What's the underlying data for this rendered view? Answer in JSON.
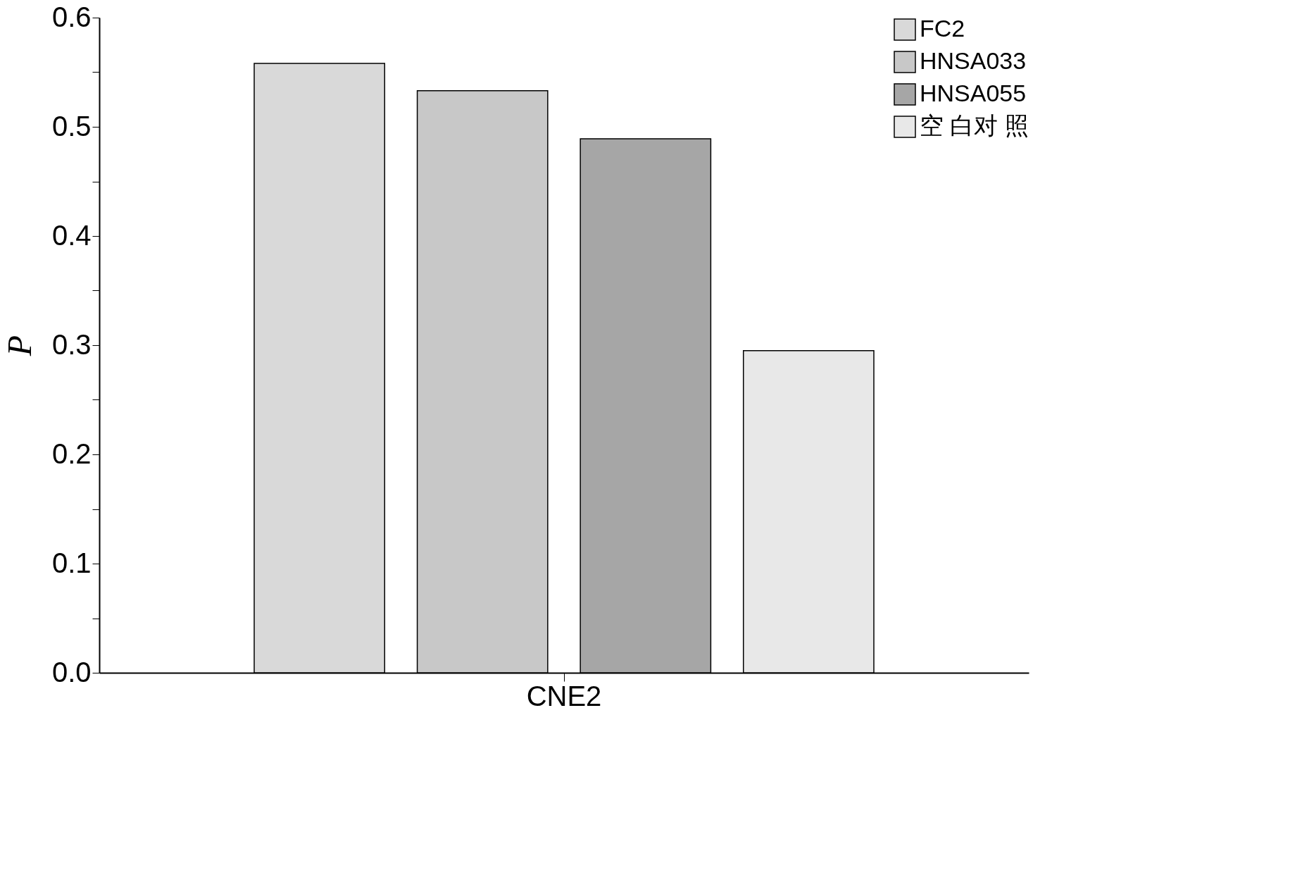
{
  "chart_data": {
    "type": "bar",
    "ylabel": "P",
    "categories": [
      "CNE2"
    ],
    "series": [
      {
        "name": "FC2",
        "color": "#d9d9d9",
        "values": [
          0.558
        ]
      },
      {
        "name": "HNSA033",
        "color": "#c8c8c8",
        "values": [
          0.533
        ]
      },
      {
        "name": "HNSA055",
        "color": "#a6a6a6",
        "values": [
          0.489
        ]
      },
      {
        "name": "空 白对 照",
        "color": "#e8e8e8",
        "values": [
          0.295
        ]
      }
    ],
    "ylim": [
      0,
      0.6
    ],
    "yticks": [
      {
        "value": 0,
        "label": "0.0"
      },
      {
        "value": 0.05,
        "label": null
      },
      0.1,
      {
        "value": 0.15,
        "label": null
      },
      0.2,
      {
        "value": 0.25,
        "label": null
      },
      0.3,
      {
        "value": 0.35,
        "label": null
      },
      0.4,
      {
        "value": 0.45,
        "label": null
      },
      0.5,
      {
        "value": 0.55,
        "label": null
      },
      0.6
    ],
    "legend": "top right",
    "grid": false
  }
}
